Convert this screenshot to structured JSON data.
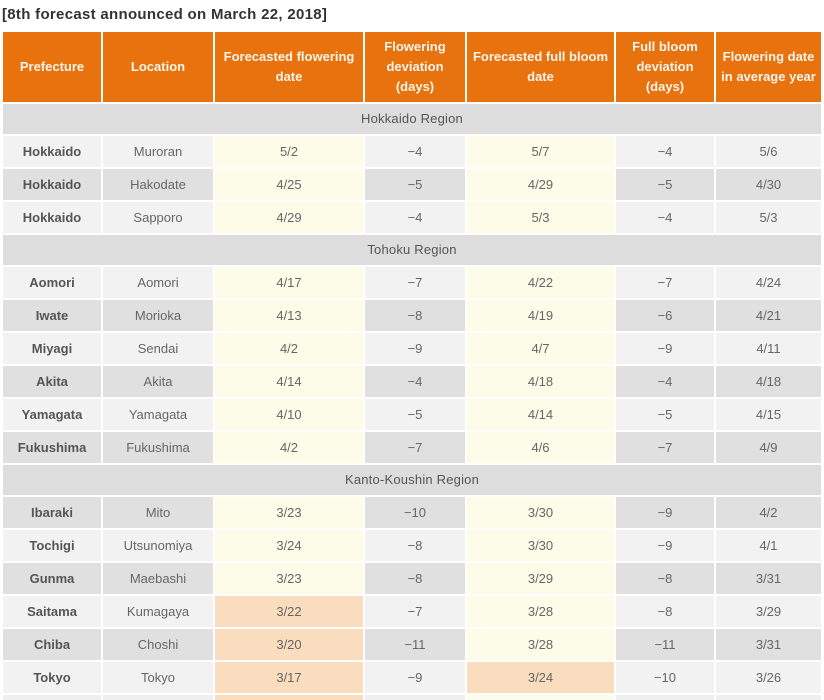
{
  "title": "[8th forecast announced on March 22, 2018]",
  "colors": {
    "header_bg": "#E8720D",
    "header_text": "#FCF5EC",
    "region_band_bg": "#DDDDDD",
    "row_light_bg": "#F2F2F2",
    "row_dark_bg": "#E0E0E0",
    "date_cell_bg": "#FDFCE8",
    "highlight_cell_bg": "#FADCBE",
    "body_text": "#666666",
    "title_text": "#333333"
  },
  "table": {
    "columns": [
      "Prefecture",
      "Location",
      "Forecasted flowering date",
      "Flowering deviation (days)",
      "Forecasted full bloom date",
      "Full bloom deviation (days)",
      "Flowering date in average year"
    ],
    "sections": [
      {
        "region": "Hokkaido Region",
        "rows": [
          {
            "prefecture": "Hokkaido",
            "location": "Muroran",
            "flowering_date": "5/2",
            "flowering_highlight": false,
            "flowering_deviation": "−4",
            "full_bloom_date": "5/7",
            "full_bloom_highlight": false,
            "full_bloom_deviation": "−4",
            "average_year_date": "5/6"
          },
          {
            "prefecture": "Hokkaido",
            "location": "Hakodate",
            "flowering_date": "4/25",
            "flowering_highlight": false,
            "flowering_deviation": "−5",
            "full_bloom_date": "4/29",
            "full_bloom_highlight": false,
            "full_bloom_deviation": "−5",
            "average_year_date": "4/30"
          },
          {
            "prefecture": "Hokkaido",
            "location": "Sapporo",
            "flowering_date": "4/29",
            "flowering_highlight": false,
            "flowering_deviation": "−4",
            "full_bloom_date": "5/3",
            "full_bloom_highlight": false,
            "full_bloom_deviation": "−4",
            "average_year_date": "5/3"
          }
        ]
      },
      {
        "region": "Tohoku Region",
        "rows": [
          {
            "prefecture": "Aomori",
            "location": "Aomori",
            "flowering_date": "4/17",
            "flowering_highlight": false,
            "flowering_deviation": "−7",
            "full_bloom_date": "4/22",
            "full_bloom_highlight": false,
            "full_bloom_deviation": "−7",
            "average_year_date": "4/24"
          },
          {
            "prefecture": "Iwate",
            "location": "Morioka",
            "flowering_date": "4/13",
            "flowering_highlight": false,
            "flowering_deviation": "−8",
            "full_bloom_date": "4/19",
            "full_bloom_highlight": false,
            "full_bloom_deviation": "−6",
            "average_year_date": "4/21"
          },
          {
            "prefecture": "Miyagi",
            "location": "Sendai",
            "flowering_date": "4/2",
            "flowering_highlight": false,
            "flowering_deviation": "−9",
            "full_bloom_date": "4/7",
            "full_bloom_highlight": false,
            "full_bloom_deviation": "−9",
            "average_year_date": "4/11"
          },
          {
            "prefecture": "Akita",
            "location": "Akita",
            "flowering_date": "4/14",
            "flowering_highlight": false,
            "flowering_deviation": "−4",
            "full_bloom_date": "4/18",
            "full_bloom_highlight": false,
            "full_bloom_deviation": "−4",
            "average_year_date": "4/18"
          },
          {
            "prefecture": "Yamagata",
            "location": "Yamagata",
            "flowering_date": "4/10",
            "flowering_highlight": false,
            "flowering_deviation": "−5",
            "full_bloom_date": "4/14",
            "full_bloom_highlight": false,
            "full_bloom_deviation": "−5",
            "average_year_date": "4/15"
          },
          {
            "prefecture": "Fukushima",
            "location": "Fukushima",
            "flowering_date": "4/2",
            "flowering_highlight": false,
            "flowering_deviation": "−7",
            "full_bloom_date": "4/6",
            "full_bloom_highlight": false,
            "full_bloom_deviation": "−7",
            "average_year_date": "4/9"
          }
        ]
      },
      {
        "region": "Kanto-Koushin Region",
        "rows": [
          {
            "prefecture": "Ibaraki",
            "location": "Mito",
            "flowering_date": "3/23",
            "flowering_highlight": false,
            "flowering_deviation": "−10",
            "full_bloom_date": "3/30",
            "full_bloom_highlight": false,
            "full_bloom_deviation": "−9",
            "average_year_date": "4/2"
          },
          {
            "prefecture": "Tochigi",
            "location": "Utsunomiya",
            "flowering_date": "3/24",
            "flowering_highlight": false,
            "flowering_deviation": "−8",
            "full_bloom_date": "3/30",
            "full_bloom_highlight": false,
            "full_bloom_deviation": "−9",
            "average_year_date": "4/1"
          },
          {
            "prefecture": "Gunma",
            "location": "Maebashi",
            "flowering_date": "3/23",
            "flowering_highlight": false,
            "flowering_deviation": "−8",
            "full_bloom_date": "3/29",
            "full_bloom_highlight": false,
            "full_bloom_deviation": "−8",
            "average_year_date": "3/31"
          },
          {
            "prefecture": "Saitama",
            "location": "Kumagaya",
            "flowering_date": "3/22",
            "flowering_highlight": true,
            "flowering_deviation": "−7",
            "full_bloom_date": "3/28",
            "full_bloom_highlight": false,
            "full_bloom_deviation": "−8",
            "average_year_date": "3/29"
          },
          {
            "prefecture": "Chiba",
            "location": "Choshi",
            "flowering_date": "3/20",
            "flowering_highlight": true,
            "flowering_deviation": "−11",
            "full_bloom_date": "3/28",
            "full_bloom_highlight": false,
            "full_bloom_deviation": "−11",
            "average_year_date": "3/31"
          },
          {
            "prefecture": "Tokyo",
            "location": "Tokyo",
            "flowering_date": "3/17",
            "flowering_highlight": true,
            "flowering_deviation": "−9",
            "full_bloom_date": "3/24",
            "full_bloom_highlight": true,
            "full_bloom_deviation": "−10",
            "average_year_date": "3/26"
          }
        ]
      }
    ],
    "cutoff_row": {
      "visible": true,
      "flowering_highlight": true,
      "full_bloom_highlight": false
    }
  }
}
